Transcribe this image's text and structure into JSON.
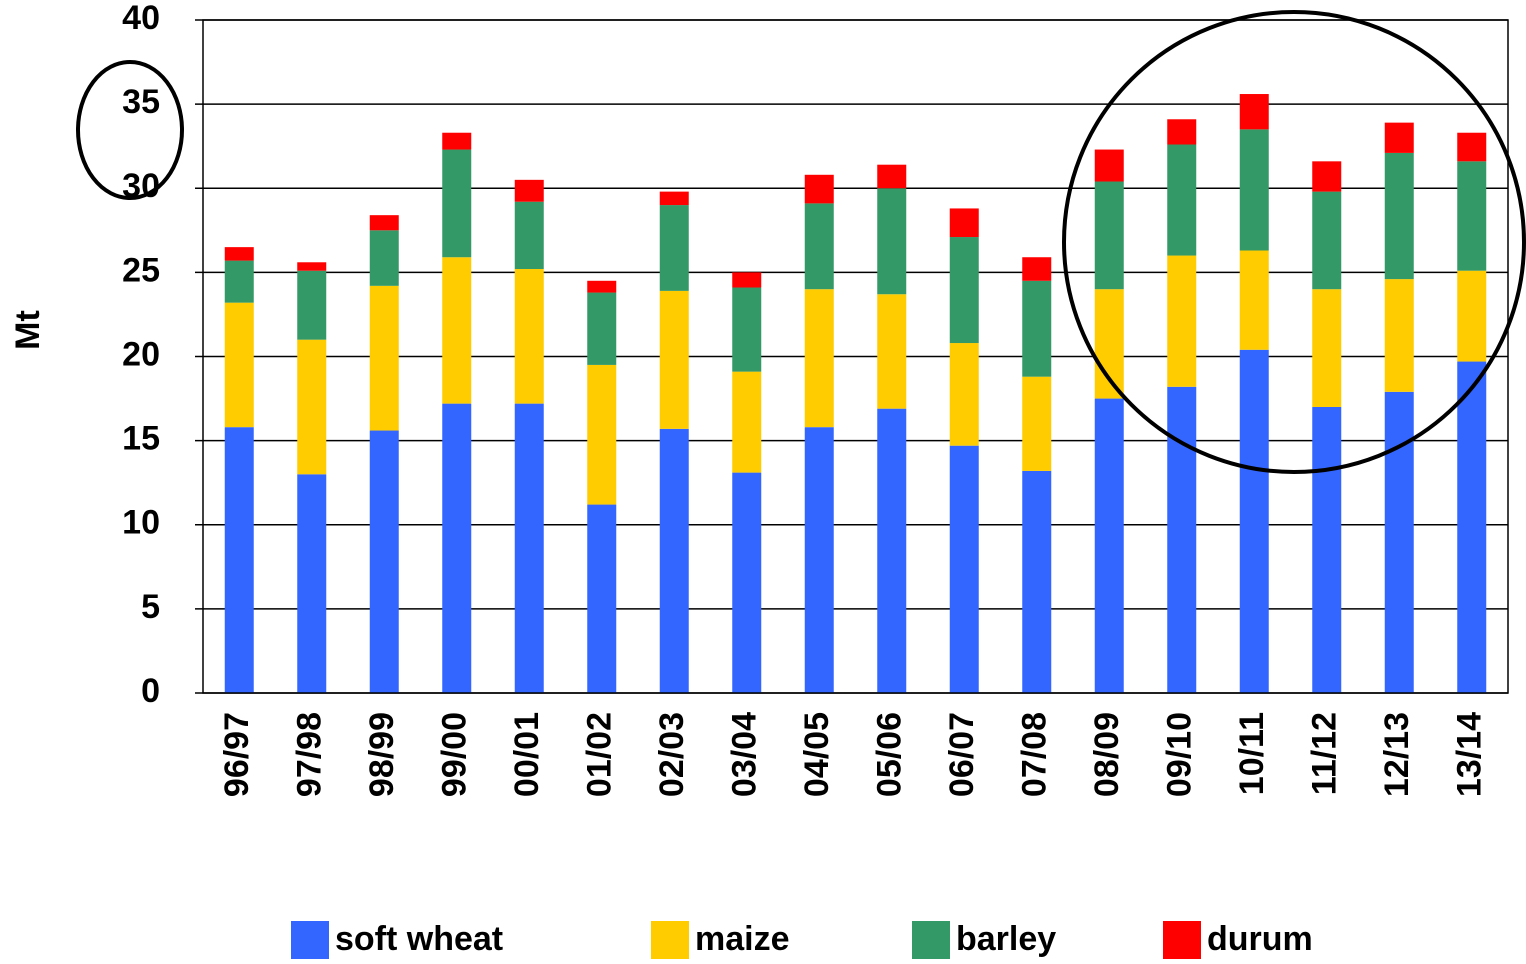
{
  "chart_data": {
    "type": "stacked_bar",
    "y_label": "Mt",
    "categories": [
      "96/97",
      "97/98",
      "98/99",
      "99/00",
      "00/01",
      "01/02",
      "02/03",
      "03/04",
      "04/05",
      "05/06",
      "06/07",
      "07/08",
      "08/09",
      "09/10",
      "10/11",
      "11/12",
      "12/13",
      "13/14"
    ],
    "series": [
      {
        "name": "soft wheat",
        "color": "#3366ff",
        "values": [
          15.8,
          13.0,
          15.6,
          17.2,
          17.2,
          11.2,
          15.7,
          13.1,
          15.8,
          16.9,
          14.7,
          13.2,
          17.5,
          18.2,
          20.4,
          17.0,
          17.9,
          19.7
        ]
      },
      {
        "name": "maize",
        "color": "#ffcc00",
        "values": [
          7.4,
          8.0,
          8.6,
          8.7,
          8.0,
          8.3,
          8.2,
          6.0,
          8.2,
          6.8,
          6.1,
          5.6,
          6.5,
          7.8,
          5.9,
          7.0,
          6.7,
          5.4
        ]
      },
      {
        "name": "barley",
        "color": "#339966",
        "values": [
          2.5,
          4.1,
          3.3,
          6.4,
          4.0,
          4.3,
          5.1,
          5.0,
          5.1,
          6.3,
          6.3,
          5.7,
          6.4,
          6.6,
          7.2,
          5.8,
          7.5,
          6.5
        ]
      },
      {
        "name": "durum",
        "color": "#ff0000",
        "values": [
          0.8,
          0.5,
          0.9,
          1.0,
          1.3,
          0.7,
          0.8,
          0.9,
          1.7,
          1.4,
          1.7,
          1.4,
          1.9,
          1.5,
          2.1,
          1.8,
          1.8,
          1.7
        ]
      }
    ],
    "ylim": [
      0,
      40
    ],
    "yticks": [
      0,
      5,
      10,
      15,
      20,
      25,
      30,
      35,
      40
    ],
    "grid": true,
    "legend": "bottom"
  }
}
